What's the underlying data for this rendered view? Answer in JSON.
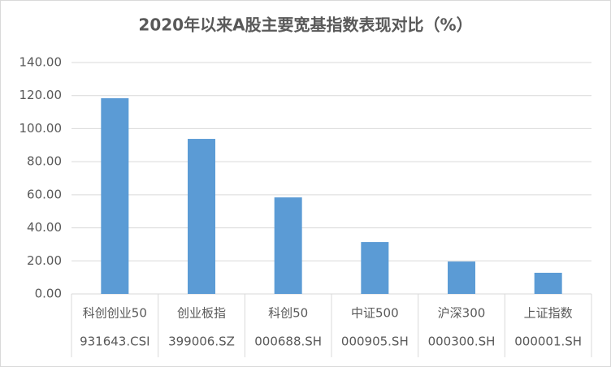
{
  "chart_data": {
    "type": "bar",
    "title": "2020年以来A股主要宽基指数表现对比（%）",
    "categories": [
      [
        "科创创业50",
        "931643.CSI"
      ],
      [
        "创业板指",
        "399006.SZ"
      ],
      [
        "科创50",
        "000688.SH"
      ],
      [
        "中证500",
        "000905.SH"
      ],
      [
        "沪深300",
        "000300.SH"
      ],
      [
        "上证指数",
        "000001.SH"
      ]
    ],
    "values": [
      118.4,
      93.8,
      58.4,
      31.4,
      19.6,
      12.8
    ],
    "color": "#5b9bd5",
    "ylim": [
      0,
      140
    ],
    "yticks": [
      {
        "value": 0,
        "label": "0.00"
      },
      {
        "value": 20,
        "label": "20.00"
      },
      {
        "value": 40,
        "label": "40.00"
      },
      {
        "value": 60,
        "label": "60.00"
      },
      {
        "value": 80,
        "label": "80.00"
      },
      {
        "value": 100,
        "label": "100.00"
      },
      {
        "value": 120,
        "label": "120.00"
      },
      {
        "value": 140,
        "label": "140.00"
      }
    ],
    "grid": true
  }
}
